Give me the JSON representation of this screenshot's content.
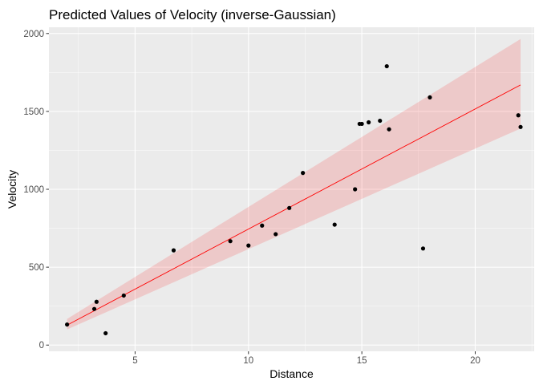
{
  "chart_data": {
    "type": "scatter",
    "title": "Predicted Values of Velocity (inverse-Gaussian)",
    "xlabel": "Distance",
    "ylabel": "Velocity",
    "xlim": [
      1.2,
      22.6
    ],
    "ylim": [
      -40,
      2040
    ],
    "x_ticks": [
      5,
      10,
      15,
      20
    ],
    "y_ticks": [
      0,
      500,
      1000,
      1500,
      2000
    ],
    "grid": true,
    "legend": "none",
    "colors": {
      "panel": "#ebebeb",
      "grid_major": "#ffffff",
      "ribbon": "#ff0000",
      "line": "#ff0000",
      "points": "#000000",
      "tick_mark": "#333333"
    },
    "points": [
      {
        "x": 2.0,
        "y": 132
      },
      {
        "x": 3.2,
        "y": 232
      },
      {
        "x": 3.3,
        "y": 278
      },
      {
        "x": 3.7,
        "y": 76
      },
      {
        "x": 4.5,
        "y": 318
      },
      {
        "x": 6.7,
        "y": 608
      },
      {
        "x": 9.2,
        "y": 667
      },
      {
        "x": 10.0,
        "y": 639
      },
      {
        "x": 10.6,
        "y": 767
      },
      {
        "x": 11.2,
        "y": 712
      },
      {
        "x": 11.8,
        "y": 880
      },
      {
        "x": 12.4,
        "y": 1105
      },
      {
        "x": 13.8,
        "y": 773
      },
      {
        "x": 14.7,
        "y": 1000
      },
      {
        "x": 14.9,
        "y": 1420
      },
      {
        "x": 15.0,
        "y": 1420
      },
      {
        "x": 15.3,
        "y": 1430
      },
      {
        "x": 15.8,
        "y": 1440
      },
      {
        "x": 16.1,
        "y": 1790
      },
      {
        "x": 16.2,
        "y": 1385
      },
      {
        "x": 17.7,
        "y": 620
      },
      {
        "x": 18.0,
        "y": 1590
      },
      {
        "x": 21.9,
        "y": 1475
      },
      {
        "x": 22.0,
        "y": 1400
      }
    ],
    "fit": {
      "x": [
        2.0,
        22.0
      ],
      "y": [
        128,
        1670
      ],
      "ci_lower": [
        100,
        1390
      ],
      "ci_upper": [
        168,
        1965
      ]
    }
  }
}
